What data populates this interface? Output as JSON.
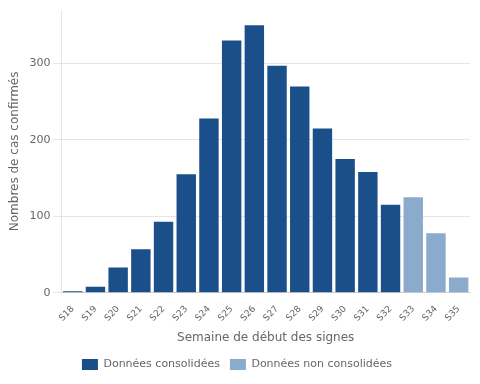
{
  "chart_data": {
    "type": "bar",
    "xlabel": "Semaine de début des signes",
    "ylabel": "Nombres de cas confirmés",
    "categories": [
      "S18",
      "S19",
      "S20",
      "S21",
      "S22",
      "S23",
      "S24",
      "S25",
      "S26",
      "S27",
      "S28",
      "S29",
      "S30",
      "S31",
      "S32",
      "S33",
      "S34",
      "S35"
    ],
    "series": [
      {
        "name": "Données consolidées",
        "color": "#1a4f8a",
        "values": [
          2,
          8,
          33,
          57,
          93,
          155,
          228,
          330,
          350,
          297,
          270,
          215,
          175,
          158,
          115,
          null,
          null,
          null
        ]
      },
      {
        "name": "Données non consolidées",
        "color": "#8aabcc",
        "values": [
          null,
          null,
          null,
          null,
          null,
          null,
          null,
          null,
          null,
          null,
          null,
          null,
          null,
          null,
          null,
          125,
          78,
          20
        ]
      }
    ],
    "ylim": [
      0,
      370
    ],
    "yticks": [
      0,
      100,
      200,
      300
    ],
    "grid": true,
    "legend": "bottom"
  }
}
